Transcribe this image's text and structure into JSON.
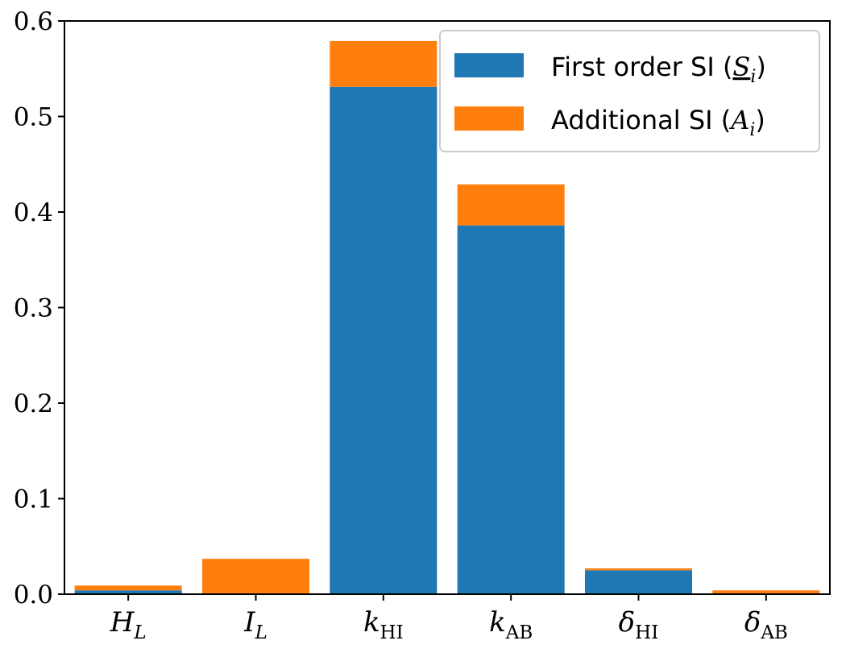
{
  "chart_data": {
    "type": "bar",
    "stacked": true,
    "categories": [
      "H_L",
      "I_L",
      "k_HI",
      "k_AB",
      "δ_HI",
      "δ_AB"
    ],
    "category_labels": [
      {
        "main": "H",
        "sub": "L",
        "sub_italic": true
      },
      {
        "main": "I",
        "sub": "L",
        "sub_italic": true
      },
      {
        "main": "k",
        "sub": "HI",
        "sub_italic": false
      },
      {
        "main": "k",
        "sub": "AB",
        "sub_italic": false
      },
      {
        "main": "δ",
        "sub": "HI",
        "sub_italic": false
      },
      {
        "main": "δ",
        "sub": "AB",
        "sub_italic": false
      }
    ],
    "series": [
      {
        "name": "First order SI (S_i)",
        "legend_text": "First order SI (",
        "legend_symbol": "S",
        "legend_symbol_sub": "i",
        "legend_close": ")",
        "color": "#1f77b4",
        "values": [
          0.004,
          0.0,
          0.531,
          0.386,
          0.025,
          0.0
        ]
      },
      {
        "name": "Additional SI (A_i)",
        "legend_text": "Additional SI (",
        "legend_symbol": "A",
        "legend_symbol_sub": "i",
        "legend_close": ")",
        "color": "#ff7f0e",
        "values": [
          0.005,
          0.037,
          0.048,
          0.043,
          0.002,
          0.004
        ]
      }
    ],
    "ylim": [
      0,
      0.6
    ],
    "yticks": [
      "0.0",
      "0.1",
      "0.2",
      "0.3",
      "0.4",
      "0.5",
      "0.6"
    ],
    "title": "",
    "xlabel": "",
    "ylabel": "",
    "grid": false,
    "legend_position": "top-right"
  }
}
